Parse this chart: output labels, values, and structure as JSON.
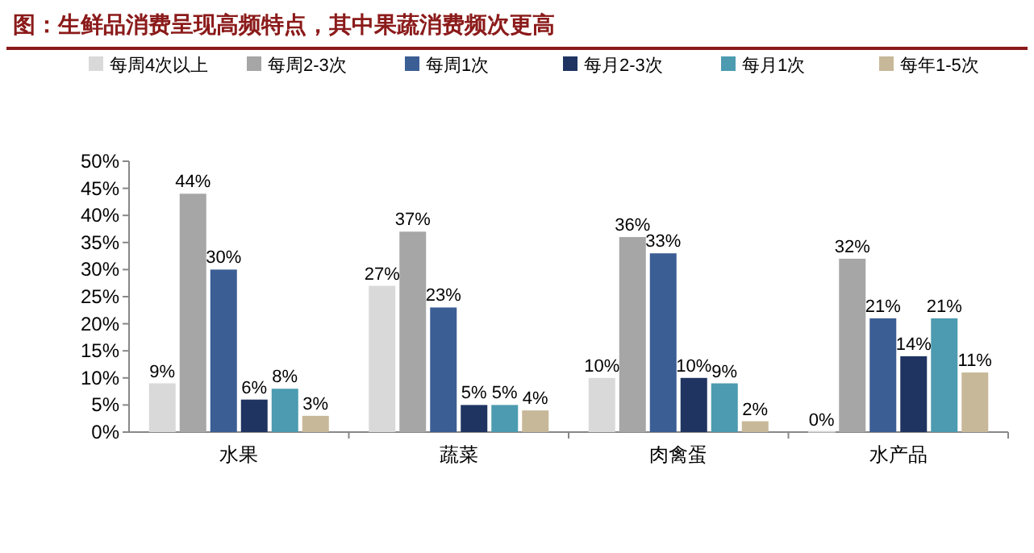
{
  "chart_data": {
    "type": "bar",
    "title": "图：生鲜品消费呈现高频特点，其中果蔬消费频次更高",
    "categories": [
      "水果",
      "蔬菜",
      "肉禽蛋",
      "水产品"
    ],
    "series": [
      {
        "name": "每周4次以上",
        "color": "#d9d9d9",
        "values": [
          9,
          27,
          10,
          0
        ],
        "value_labels": [
          "9%",
          "27%",
          "10%",
          "0%"
        ]
      },
      {
        "name": "每周2-3次",
        "color": "#a6a6a6",
        "values": [
          44,
          37,
          36,
          32
        ],
        "value_labels": [
          "44%",
          "37%",
          "36%",
          "32%"
        ]
      },
      {
        "name": "每周1次",
        "color": "#3b5e95",
        "values": [
          30,
          23,
          33,
          21
        ],
        "value_labels": [
          "30%",
          "23%",
          "33%",
          "21%"
        ]
      },
      {
        "name": "每月2-3次",
        "color": "#1f3461",
        "values": [
          6,
          5,
          10,
          14
        ],
        "value_labels": [
          "6%",
          "5%",
          "10%",
          "14%"
        ]
      },
      {
        "name": "每月1次",
        "color": "#4c9bb0",
        "values": [
          8,
          5,
          9,
          21
        ],
        "value_labels": [
          "8%",
          "5%",
          "9%",
          "21%"
        ]
      },
      {
        "name": "每年1-5次",
        "color": "#c7b899",
        "values": [
          3,
          4,
          2,
          11
        ],
        "value_labels": [
          "3%",
          "4%",
          "2%",
          "11%"
        ]
      }
    ],
    "ylim": [
      0,
      50
    ],
    "yticks": [
      {
        "value": 0,
        "label": "0%"
      },
      {
        "value": 5,
        "label": "5%"
      },
      {
        "value": 10,
        "label": "10%"
      },
      {
        "value": 15,
        "label": "15%"
      },
      {
        "value": 20,
        "label": "20%"
      },
      {
        "value": 25,
        "label": "25%"
      },
      {
        "value": 30,
        "label": "30%"
      },
      {
        "value": 35,
        "label": "35%"
      },
      {
        "value": 40,
        "label": "40%"
      },
      {
        "value": 45,
        "label": "45%"
      },
      {
        "value": 50,
        "label": "50%"
      }
    ],
    "legend": "top",
    "grid": false
  }
}
